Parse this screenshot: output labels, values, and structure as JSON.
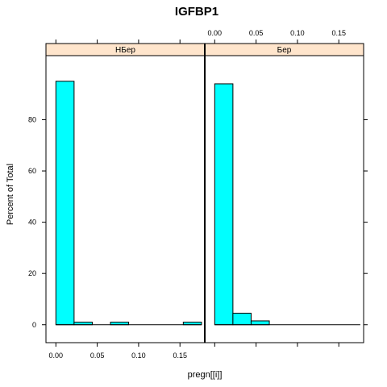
{
  "chart_data": {
    "type": "bar",
    "title": "IGFBP1",
    "xlabel": "pregn[[i]]",
    "ylabel": "Percent of Total",
    "xlim": [
      -0.012,
      0.18
    ],
    "ylim": [
      -7,
      105
    ],
    "x_ticks": [
      "0.00",
      "0.05",
      "0.10",
      "0.15"
    ],
    "x_tick_values": [
      0.0,
      0.05,
      0.1,
      0.15
    ],
    "y_ticks": [
      "0",
      "20",
      "40",
      "60",
      "80"
    ],
    "y_tick_values": [
      0,
      20,
      40,
      60,
      80
    ],
    "bar_color": "#00FFFF",
    "strip_color": "#FFE5CC",
    "panels": [
      {
        "strip": "НБер",
        "bins": [
          {
            "x0": 0.0,
            "x1": 0.022,
            "value": 95
          },
          {
            "x0": 0.022,
            "x1": 0.044,
            "value": 1
          },
          {
            "x0": 0.044,
            "x1": 0.066,
            "value": 0
          },
          {
            "x0": 0.066,
            "x1": 0.088,
            "value": 1
          },
          {
            "x0": 0.088,
            "x1": 0.11,
            "value": 0
          },
          {
            "x0": 0.11,
            "x1": 0.132,
            "value": 0
          },
          {
            "x0": 0.132,
            "x1": 0.154,
            "value": 0
          },
          {
            "x0": 0.154,
            "x1": 0.176,
            "value": 1
          }
        ]
      },
      {
        "strip": "Бер",
        "bins": [
          {
            "x0": 0.0,
            "x1": 0.022,
            "value": 94
          },
          {
            "x0": 0.022,
            "x1": 0.044,
            "value": 4.5
          },
          {
            "x0": 0.044,
            "x1": 0.066,
            "value": 1.5
          },
          {
            "x0": 0.066,
            "x1": 0.088,
            "value": 0
          },
          {
            "x0": 0.088,
            "x1": 0.11,
            "value": 0
          },
          {
            "x0": 0.11,
            "x1": 0.132,
            "value": 0
          },
          {
            "x0": 0.132,
            "x1": 0.154,
            "value": 0
          },
          {
            "x0": 0.154,
            "x1": 0.176,
            "value": 0
          }
        ]
      }
    ]
  }
}
